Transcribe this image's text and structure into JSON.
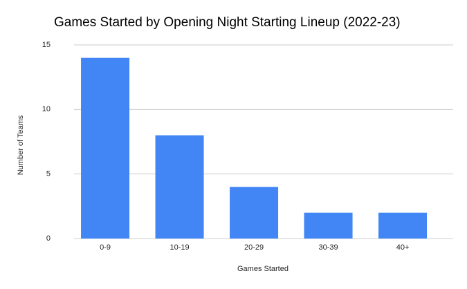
{
  "chart_data": {
    "type": "bar",
    "title": "Games Started by Opening Night Starting Lineup (2022-23)",
    "x_label": "Games Started",
    "y_label": "Number of Teams",
    "categories": [
      "0-9",
      "10-19",
      "20-29",
      "30-39",
      "40+"
    ],
    "values": [
      14,
      8,
      4,
      2,
      2
    ],
    "color": "#4285f4",
    "ylim": [
      0,
      15
    ],
    "yticks": [
      0,
      5,
      10,
      15
    ],
    "grid": true
  }
}
